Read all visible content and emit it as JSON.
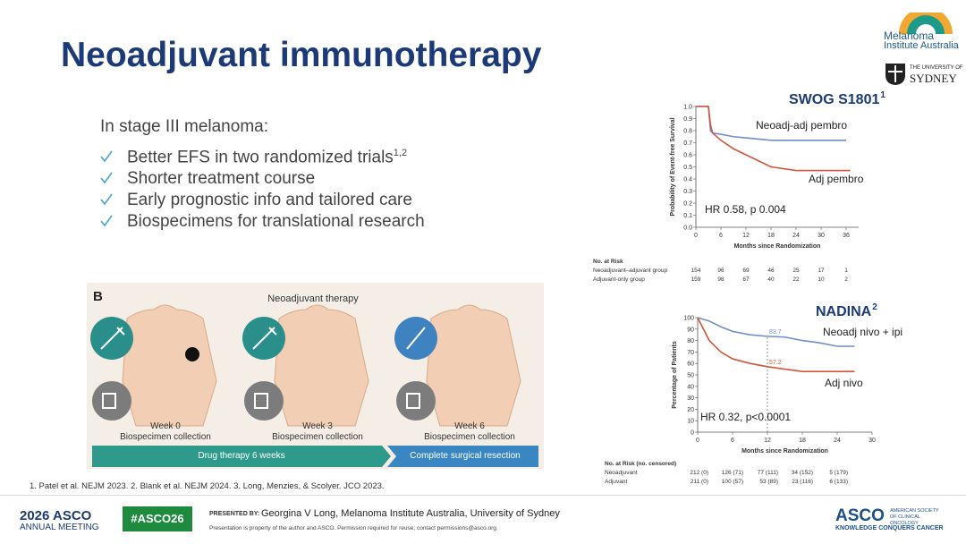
{
  "header": {
    "title": "Neoadjuvant immunotherapy"
  },
  "logos": {
    "mia": [
      "Melanoma",
      "Institute Australia"
    ],
    "usyd": [
      "THE UNIVERSITY OF",
      "SYDNEY"
    ]
  },
  "bullets": {
    "intro": "In stage III melanoma:",
    "items": [
      {
        "text": "Better EFS in two randomized trials",
        "sup": "1,2"
      },
      {
        "text": "Shorter treatment course"
      },
      {
        "text": "Early prognostic info and tailored care"
      },
      {
        "text": "Biospecimens for translational research"
      }
    ]
  },
  "figure": {
    "label": "B",
    "title": "Neoadjuvant therapy",
    "panels": [
      {
        "week": "Week 0",
        "caption": "Biospecimen collection"
      },
      {
        "week": "Week 3",
        "caption": "Biospecimen collection"
      },
      {
        "week": "Week 6",
        "caption": "Biospecimen collection"
      }
    ],
    "arrows": [
      "Drug therapy 6 weeks",
      "Complete surgical resection"
    ]
  },
  "footnote": "1. Patel et al. NEJM 2023. 2. Blank et al. NEJM 2024. 3. Long, Menzies, & Scolyer. JCO 2023.",
  "footer": {
    "meeting": [
      "2026 ASCO",
      "ANNUAL MEETING"
    ],
    "hashtag": "#ASCO26",
    "presented_label": "PRESENTED BY:",
    "presenter": "Georgina V Long, Melanoma Institute Australia, University of Sydney",
    "disclaimer": "Presentation is property of the author and ASCO. Permission required for reuse; contact permissions@asco.org.",
    "asco": "ASCO",
    "asco_society": "AMERICAN SOCIETY OF CLINICAL ONCOLOGY",
    "asco_tagline": "KNOWLEDGE CONQUERS CANCER"
  },
  "chart_data": [
    {
      "type": "line",
      "title": "SWOG S1801",
      "title_sup": "1",
      "x_label": "Months since Randomization",
      "y_label": "Probability of Event-free Survival",
      "xlim": [
        0,
        39
      ],
      "xticks": [
        0,
        6,
        12,
        18,
        24,
        30,
        36
      ],
      "ylim": [
        0,
        1
      ],
      "yticks": [
        {
          "value": 0,
          "label": "0.0"
        },
        0.1,
        0.2,
        0.3,
        0.4,
        0.5,
        0.6,
        0.7,
        0.8,
        0.9,
        {
          "value": 1,
          "label": "1.0"
        }
      ],
      "series": [
        {
          "name": "Neoadj-adj pembro",
          "color": "#6f8fc9",
          "x": [
            0,
            3,
            3.5,
            4,
            6,
            9,
            12,
            15,
            18,
            24,
            30,
            36
          ],
          "values": [
            1,
            1,
            0.8,
            0.78,
            0.77,
            0.75,
            0.74,
            0.73,
            0.72,
            0.72,
            0.72,
            0.72
          ]
        },
        {
          "name": "Adj pembro",
          "color": "#d2553a",
          "x": [
            0,
            3,
            3.5,
            4,
            6,
            9,
            12,
            15,
            18,
            24,
            30,
            37
          ],
          "values": [
            1,
            1,
            0.85,
            0.78,
            0.72,
            0.65,
            0.6,
            0.55,
            0.5,
            0.47,
            0.47,
            0.47
          ]
        }
      ],
      "annotation": "HR 0.58, p 0.004",
      "risk_table": {
        "title": "No. at Risk",
        "rows": [
          {
            "label": "Neoadjuvant–adjuvant group",
            "values": [
              154,
              96,
              69,
              46,
              25,
              17,
              1
            ]
          },
          {
            "label": "Adjuvant-only group",
            "values": [
              159,
              98,
              67,
              40,
              22,
              10,
              2
            ]
          }
        ]
      }
    },
    {
      "type": "line",
      "title": "NADINA",
      "title_sup": "2",
      "x_label": "Months since Randomization",
      "y_label": "Percentage of Patients",
      "xlim": [
        0,
        30
      ],
      "xticks": [
        0,
        6,
        12,
        18,
        24,
        30
      ],
      "ylim": [
        0,
        100
      ],
      "yticks": [
        0,
        10,
        20,
        30,
        40,
        50,
        60,
        70,
        80,
        90,
        100
      ],
      "series": [
        {
          "name": "Neoadj nivo + ipi",
          "color": "#6f8fc9",
          "x": [
            0,
            2,
            4,
            6,
            9,
            12,
            15,
            18,
            21,
            24,
            27
          ],
          "values": [
            100,
            97,
            92,
            88,
            85,
            83.7,
            83,
            80,
            78,
            75,
            75
          ]
        },
        {
          "name": "Adj nivo",
          "color": "#d2553a",
          "x": [
            0,
            2,
            4,
            6,
            9,
            12,
            15,
            18,
            21,
            24,
            27
          ],
          "values": [
            100,
            80,
            70,
            64,
            60,
            57.2,
            55,
            53,
            53,
            53,
            53
          ]
        }
      ],
      "landmark": {
        "x": 12,
        "values": [
          83.7,
          57.2
        ]
      },
      "annotation": "HR 0.32, p<0.0001",
      "risk_table": {
        "title": "No. at Risk (no. censored)",
        "rows": [
          {
            "label": "Neoadjuvant",
            "values": [
              "212 (0)",
              "126 (71)",
              "77 (111)",
              "34 (152)",
              "5 (179)"
            ]
          },
          {
            "label": "Adjuvant",
            "values": [
              "211 (0)",
              "100 (57)",
              "53 (89)",
              "23 (116)",
              "6 (133)"
            ]
          }
        ]
      }
    }
  ]
}
